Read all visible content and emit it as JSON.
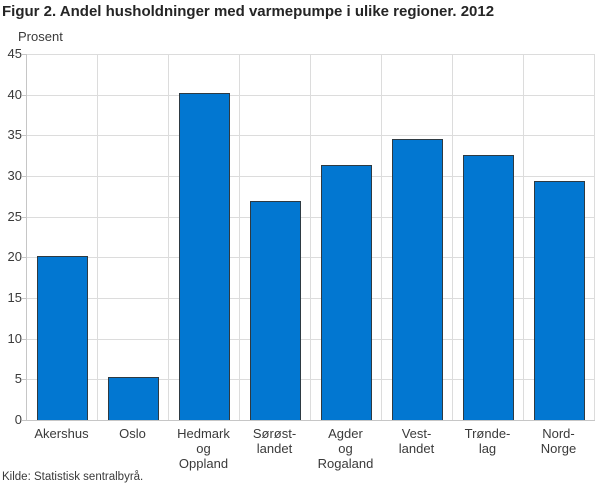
{
  "title": "Figur 2. Andel husholdninger med varmepumpe i ulike regioner. 2012",
  "source": "Kilde: Statistisk sentralbyrå.",
  "colors": {
    "bar_fill": "#0277d1",
    "bar_border": "#2e3a42",
    "grid": "#dcdcdc",
    "axis": "#c6c6c6",
    "text": "#3a3a3a",
    "title_text": "#252525"
  },
  "chart_data": {
    "type": "bar",
    "title": "Figur 2. Andel husholdninger med varmepumpe i ulike regioner. 2012",
    "ylabel": "Prosent",
    "xlabel": "",
    "ylim": [
      0,
      45
    ],
    "ytick_step": 5,
    "grid": true,
    "legend": false,
    "categories": [
      "Akershus",
      "Oslo",
      "Hedmark og Oppland",
      "Sørøstlandet",
      "Agder og Rogaland",
      "Vestlandet",
      "Trøndelag",
      "Nord-Norge"
    ],
    "category_label_lines": [
      [
        "Akershus"
      ],
      [
        "Oslo"
      ],
      [
        "Hedmark",
        "og",
        "Oppland"
      ],
      [
        "Sørøst-",
        "landet"
      ],
      [
        "Agder",
        "og",
        "Rogaland"
      ],
      [
        "Vest-",
        "landet"
      ],
      [
        "Trønde-",
        "lag"
      ],
      [
        "Nord-",
        "Norge"
      ]
    ],
    "values": [
      20.2,
      5.3,
      40.2,
      26.9,
      31.3,
      34.6,
      32.6,
      29.4
    ]
  }
}
